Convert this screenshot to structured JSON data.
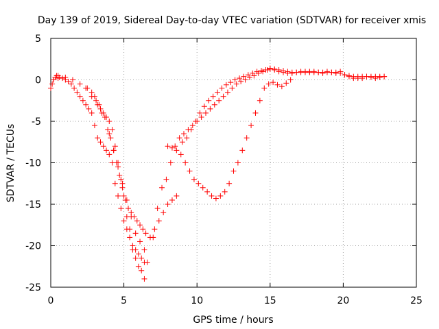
{
  "chart_data": {
    "type": "scatter",
    "title": "Day 139 of 2019, Sidereal Day-to-day VTEC variation (SDTVAR) for receiver xmis",
    "xlabel": "GPS time / hours",
    "ylabel": "SDTVAR / TECUs",
    "xlim": [
      0,
      25
    ],
    "ylim": [
      -25,
      5
    ],
    "xticks": [
      0,
      5,
      10,
      15,
      20,
      25
    ],
    "yticks": [
      5,
      0,
      -5,
      -10,
      -15,
      -20,
      -25
    ],
    "grid": true,
    "marker": "+",
    "series": [
      {
        "name": "SDTVAR",
        "color": "#ff0000",
        "x": [
          0,
          0.1,
          0.2,
          0.3,
          0.4,
          0.5,
          0.6,
          0.8,
          1.0,
          1.2,
          1.4,
          1.6,
          1.8,
          2.0,
          2.2,
          2.4,
          2.6,
          2.8,
          3.0,
          3.2,
          3.4,
          3.6,
          3.8,
          4.0,
          4.2,
          4.4,
          4.6,
          4.8,
          5.0,
          5.2,
          5.4,
          5.6,
          5.8,
          6.0,
          6.2,
          6.4,
          6.6,
          7.0,
          7.3,
          7.6,
          7.9,
          8.2,
          8.5,
          8.8,
          9.1,
          9.4,
          9.7,
          10.0,
          10.3,
          10.6,
          10.9,
          11.2,
          11.5,
          11.8,
          12.1,
          12.4,
          12.7,
          13.0,
          13.3,
          13.6,
          13.9,
          14.2,
          14.5,
          14.8,
          15.0,
          15.3,
          15.6,
          15.9,
          16.2,
          16.5,
          16.8,
          17.1,
          17.4,
          17.7,
          18.0,
          18.3,
          18.6,
          18.9,
          19.2,
          19.5,
          19.8,
          20.1,
          20.4,
          20.7,
          21.0,
          21.3,
          21.6,
          21.9,
          22.2,
          22.5,
          22.8,
          0.2,
          0.5,
          1.0,
          1.5,
          2.0,
          2.4,
          2.8,
          3.2,
          3.5,
          3.8,
          4.0,
          4.2,
          4.4,
          4.6,
          4.8,
          5.0,
          5.2,
          5.4,
          5.6,
          5.8,
          6.0,
          6.2,
          6.4,
          8.0,
          8.3,
          8.6,
          8.9,
          9.2,
          9.5,
          9.8,
          10.1,
          10.4,
          10.7,
          11.0,
          11.3,
          11.6,
          11.9,
          12.2,
          12.5,
          12.8,
          13.1,
          13.4,
          13.7,
          14.0,
          14.3,
          14.6,
          14.9,
          15.2,
          15.5,
          15.8,
          16.1,
          16.4,
          3.0,
          3.3,
          3.6,
          3.9,
          4.1,
          4.3,
          4.5,
          4.7,
          4.9,
          5.1,
          5.3,
          5.5,
          5.7,
          5.9,
          6.1,
          6.3,
          6.5,
          6.8,
          7.1,
          7.4,
          7.7,
          8.0,
          8.3,
          8.6,
          2.5,
          2.8,
          3.1,
          3.4,
          3.7,
          4.0,
          4.3,
          4.6,
          4.9,
          5.2,
          5.5,
          5.8,
          6.1,
          6.4,
          9.0,
          9.3,
          9.6,
          9.9,
          10.2,
          10.5,
          10.8,
          11.1,
          11.4,
          11.7,
          12.0,
          12.3,
          12.6,
          12.9,
          13.2,
          13.5,
          13.8,
          14.1,
          14.4,
          14.7,
          15.0,
          15.3,
          15.6,
          15.9,
          16.2,
          16.5,
          16.8,
          17.1,
          17.4,
          17.7,
          18.0,
          18.3,
          18.6,
          18.9,
          19.2,
          19.5,
          19.8,
          20.1,
          20.4,
          20.7,
          21.0,
          21.3,
          21.6,
          21.9,
          22.2,
          22.5,
          22.8
        ],
        "y": [
          -1.0,
          -0.5,
          0,
          0.3,
          0.5,
          0.5,
          0.3,
          0.2,
          0,
          -0.2,
          -0.5,
          -1.0,
          -1.5,
          -2.0,
          -2.5,
          -3.0,
          -3.5,
          -4.0,
          -5.5,
          -7.0,
          -7.5,
          -8.0,
          -8.5,
          -9.0,
          -10.0,
          -12.5,
          -14.0,
          -15.5,
          -17.0,
          -18.0,
          -19.0,
          -20.5,
          -21.5,
          -22.5,
          -23.0,
          -24.0,
          -22.0,
          -19.0,
          -15.5,
          -13.0,
          -12.0,
          -10.0,
          -8.0,
          -7.0,
          -6.5,
          -6.0,
          -5.5,
          -5.0,
          -4.5,
          -4.0,
          -3.5,
          -3.0,
          -2.5,
          -2.0,
          -1.5,
          -1.0,
          -0.5,
          -0.2,
          0,
          0.3,
          0.5,
          0.8,
          1.0,
          1.2,
          1.4,
          1.2,
          1.0,
          0.9,
          0.8,
          0.8,
          0.9,
          1.0,
          1.0,
          1.0,
          1.0,
          0.9,
          0.8,
          1.0,
          0.9,
          0.8,
          1.0,
          0.6,
          0.4,
          0.2,
          0.2,
          0.2,
          0.4,
          0.3,
          0.2,
          0.3,
          0.4,
          0,
          0.2,
          0.3,
          0,
          -0.5,
          -1.0,
          -2.0,
          -3.0,
          -4.0,
          -4.5,
          -5.0,
          -6.0,
          -8.0,
          -10.0,
          -12.0,
          -14.0,
          -16.5,
          -18.0,
          -20.0,
          -20.5,
          -21.0,
          -21.5,
          -22.0,
          -8.0,
          -8.2,
          -8.5,
          -9.0,
          -10.0,
          -11.0,
          -12.0,
          -12.5,
          -13.0,
          -13.5,
          -14.0,
          -14.3,
          -14.0,
          -13.5,
          -12.5,
          -11.0,
          -10.0,
          -8.5,
          -7.0,
          -5.5,
          -4.0,
          -2.5,
          -1.0,
          -0.5,
          -0.3,
          -0.6,
          -0.8,
          -0.4,
          0,
          -2.0,
          -3.0,
          -4.0,
          -6.0,
          -7.0,
          -8.5,
          -10.0,
          -11.5,
          -13.0,
          -14.5,
          -15.5,
          -16.0,
          -16.5,
          -17.0,
          -17.5,
          -18.0,
          -18.5,
          -19.0,
          -18.0,
          -17.0,
          -16.0,
          -15.0,
          -14.5,
          -14.0,
          -1.0,
          -1.5,
          -2.5,
          -3.5,
          -4.5,
          -6.5,
          -8.5,
          -10.5,
          -12.5,
          -14.5,
          -16.5,
          -18.5,
          -19.5,
          -20.5,
          -7.5,
          -7.0,
          -6.0,
          -5.0,
          -4.0,
          -3.2,
          -2.5,
          -2.0,
          -1.5,
          -1.0,
          -0.6,
          -0.3,
          0,
          0.2,
          0.4,
          0.6,
          0.8,
          1.0,
          1.1,
          1.2,
          1.3,
          1.3,
          1.2,
          1.1,
          1.0,
          0.9,
          0.9,
          0.9,
          0.9,
          0.9,
          0.9,
          0.9,
          0.9,
          0.9,
          0.9,
          0.9,
          0.8,
          0.6,
          0.5,
          0.4,
          0.4,
          0.4,
          0.4,
          0.4,
          0.4,
          0.4,
          0.4
        ]
      }
    ]
  }
}
